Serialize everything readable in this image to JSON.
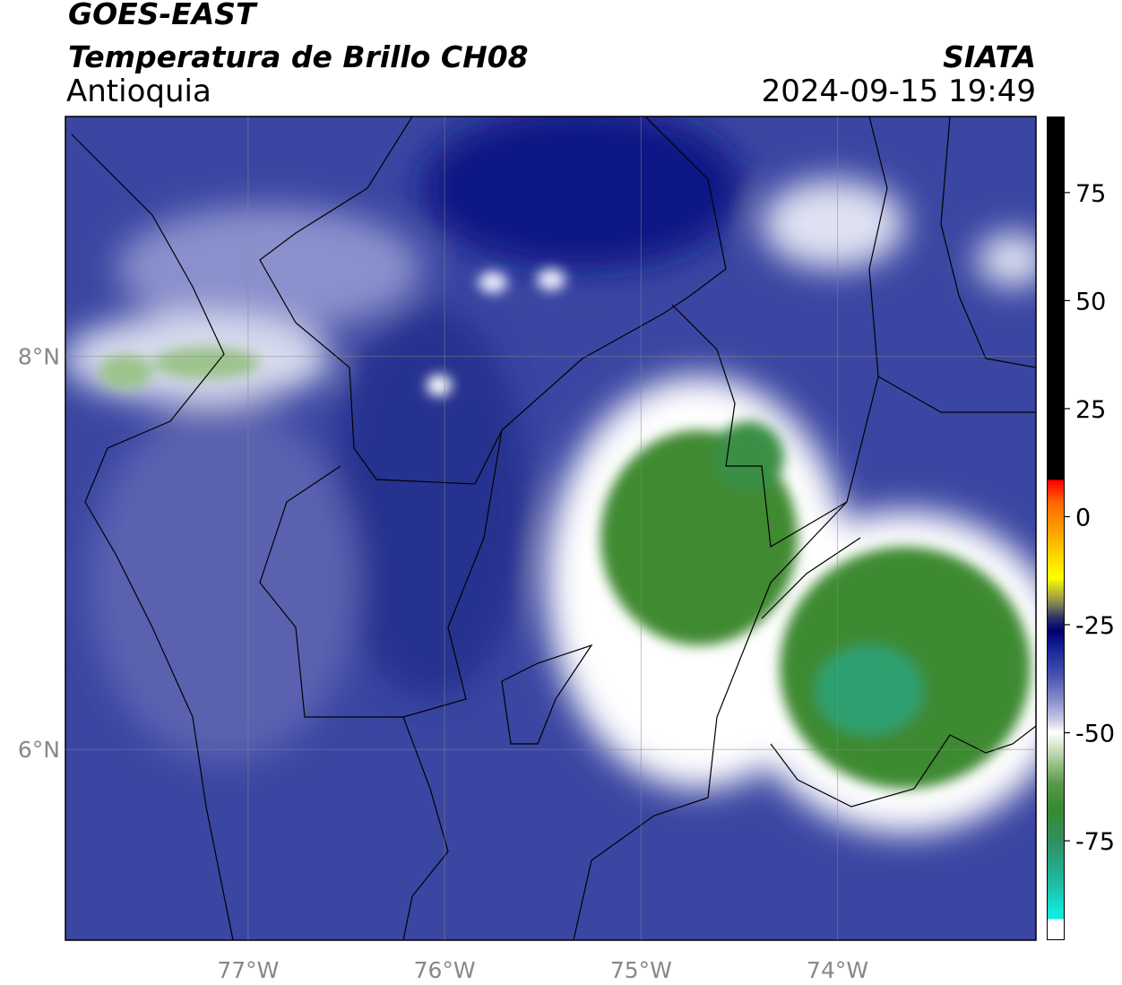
{
  "header": {
    "title": "GOES-EAST",
    "subtitle": "Temperatura de Brillo CH08",
    "region": "Antioquia",
    "source": "SIATA",
    "datetime": "2024-09-15 19:49"
  },
  "map": {
    "xlim": [
      -77.93,
      -72.99
    ],
    "ylim": [
      5.03,
      9.22
    ],
    "xticks": [
      {
        "value": -77,
        "label": "77°W"
      },
      {
        "value": -76,
        "label": "76°W"
      },
      {
        "value": -75,
        "label": "75°W"
      },
      {
        "value": -74,
        "label": "74°W"
      }
    ],
    "yticks": [
      {
        "value": 8,
        "label": "8°N"
      },
      {
        "value": 6,
        "label": "6°N"
      }
    ],
    "grid": true
  },
  "colorbar": {
    "lim": [
      -98,
      92.6
    ],
    "ticks": [
      75,
      50,
      25,
      0,
      -25,
      -50,
      -75
    ]
  }
}
